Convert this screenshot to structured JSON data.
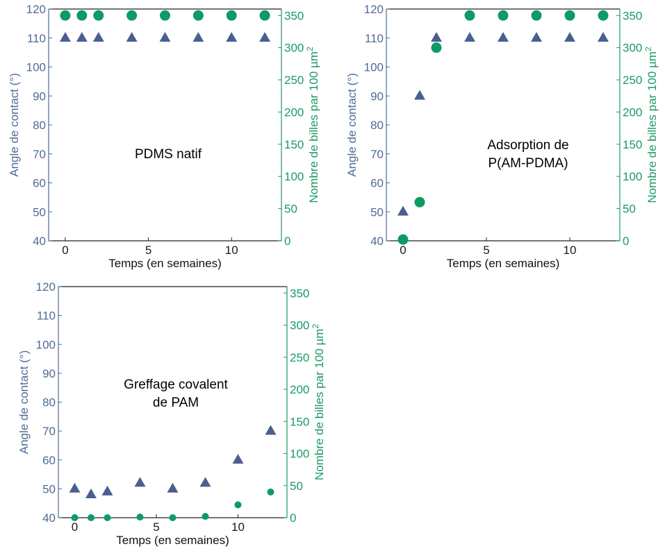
{
  "colors": {
    "angle": "#4a5f8f",
    "beads": "#0e9b63",
    "left_axis_text": "#4f6a96",
    "right_axis_text": "#1a9a62"
  },
  "chart_data": [
    {
      "type": "scatter",
      "annotation": [
        "PDMS natif"
      ],
      "xlabel": "Temps (en semaines)",
      "ylabel_left": "Angle de contact (°)",
      "ylabel_right": "Nombre de billes par 100 µm",
      "ylabel_right_sup": "2",
      "xlim": [
        -1,
        13
      ],
      "ylim_left": [
        40,
        120
      ],
      "ylim_right": [
        0,
        360
      ],
      "x_ticks": [
        0,
        5,
        10
      ],
      "y_ticks_left": [
        40,
        50,
        60,
        70,
        80,
        90,
        100,
        110,
        120
      ],
      "y_ticks_right": [
        0,
        50,
        100,
        150,
        200,
        250,
        300,
        350
      ],
      "series": [
        {
          "axis": "left",
          "marker": "triangle",
          "x": [
            0,
            1,
            2,
            4,
            6,
            8,
            10,
            12
          ],
          "y": [
            110,
            110,
            110,
            110,
            110,
            110,
            110,
            110
          ]
        },
        {
          "axis": "right",
          "marker": "circle",
          "x": [
            0,
            1,
            2,
            4,
            6,
            8,
            10,
            12
          ],
          "y": [
            350,
            350,
            350,
            350,
            350,
            350,
            350,
            350
          ]
        }
      ]
    },
    {
      "type": "scatter",
      "annotation": [
        "Adsorption de",
        "P(AM-PDMA)"
      ],
      "xlabel": "Temps (en semaines)",
      "ylabel_left": "Angle de contact (°)",
      "ylabel_right": "Nombre de billes par 100 µm",
      "ylabel_right_sup": "2",
      "xlim": [
        -1,
        13
      ],
      "ylim_left": [
        40,
        120
      ],
      "ylim_right": [
        0,
        360
      ],
      "x_ticks": [
        0,
        5,
        10
      ],
      "y_ticks_left": [
        40,
        50,
        60,
        70,
        80,
        90,
        100,
        110,
        120
      ],
      "y_ticks_right": [
        0,
        50,
        100,
        150,
        200,
        250,
        300,
        350
      ],
      "series": [
        {
          "axis": "left",
          "marker": "triangle",
          "x": [
            0,
            1,
            2,
            4,
            6,
            8,
            10,
            12
          ],
          "y": [
            50,
            90,
            110,
            110,
            110,
            110,
            110,
            110
          ]
        },
        {
          "axis": "right",
          "marker": "circle",
          "x": [
            0,
            1,
            2,
            4,
            6,
            8,
            10,
            12
          ],
          "y": [
            2,
            60,
            300,
            350,
            350,
            350,
            350,
            350
          ]
        }
      ]
    },
    {
      "type": "scatter",
      "annotation": [
        "Greffage covalent",
        "de PAM"
      ],
      "xlabel": "Temps (en semaines)",
      "ylabel_left": "Angle de contact (°)",
      "ylabel_right": "Nombre de billes par 100 µm",
      "ylabel_right_sup": "2",
      "xlim": [
        -1,
        13
      ],
      "ylim_left": [
        40,
        120
      ],
      "ylim_right": [
        0,
        360
      ],
      "x_ticks": [
        0,
        5,
        10
      ],
      "y_ticks_left": [
        40,
        50,
        60,
        70,
        80,
        90,
        100,
        110,
        120
      ],
      "y_ticks_right": [
        0,
        50,
        100,
        150,
        200,
        250,
        300,
        350
      ],
      "series": [
        {
          "axis": "left",
          "marker": "triangle",
          "x": [
            0,
            1,
            2,
            4,
            6,
            8,
            10,
            12
          ],
          "y": [
            50,
            48,
            49,
            52,
            50,
            52,
            60,
            70
          ]
        },
        {
          "axis": "right",
          "marker": "circle",
          "small": true,
          "x": [
            0,
            1,
            2,
            4,
            6,
            8,
            10,
            12
          ],
          "y": [
            0,
            0,
            0,
            1,
            0,
            2,
            20,
            40
          ]
        }
      ]
    }
  ]
}
